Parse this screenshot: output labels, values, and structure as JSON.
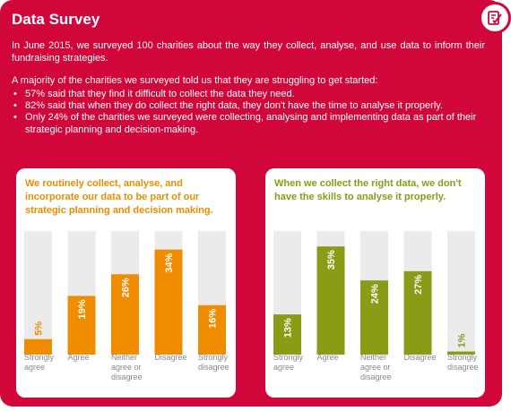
{
  "page": {
    "title": "Data Survey",
    "icon": "checklist-icon",
    "intro": "In June 2015, we surveyed 100 charities about the way they collect, analyse, and use data to inform their fundraising strategies.",
    "subintro": "A majority of the charities we surveyed told us that they are struggling to get started:",
    "bullets": [
      "57% said that they find it difficult to collect the data they need.",
      "82% said that when they do collect the right data, they don't have the time to analyse it properly.",
      "Only 24% of the charities we surveyed were collecting, analysing and implementing data as part of their strategic planning and decision-making."
    ]
  },
  "colors": {
    "background": "#d1063b",
    "chart1_bar": "#f08c00",
    "chart2_bar": "#8a9b16",
    "track": "#ebebeb",
    "axis_label": "#888888"
  },
  "chart_data": [
    {
      "type": "bar",
      "title": "We routinely collect, analyse, and incorporate our data to be part of our strategic planning and decision making.",
      "categories": [
        "Strongly agree",
        "Agree",
        "Neither agree or disagree",
        "Disagree",
        "Strongly disagree"
      ],
      "values": [
        5,
        19,
        26,
        34,
        16
      ],
      "value_labels": [
        "5%",
        "19%",
        "26%",
        "34%",
        "16%"
      ],
      "ylim": [
        0,
        40
      ],
      "grid": false,
      "xlabel": "",
      "ylabel": ""
    },
    {
      "type": "bar",
      "title": "When we collect the right data, we don't have the skills to analyse it properly.",
      "categories": [
        "Strongly agree",
        "Agree",
        "Neither agree or disagree",
        "Disagree",
        "Strongly disagree"
      ],
      "values": [
        13,
        35,
        24,
        27,
        1
      ],
      "value_labels": [
        "13%",
        "35%",
        "24%",
        "27%",
        "1%"
      ],
      "ylim": [
        0,
        40
      ],
      "grid": false,
      "xlabel": "",
      "ylabel": ""
    }
  ]
}
